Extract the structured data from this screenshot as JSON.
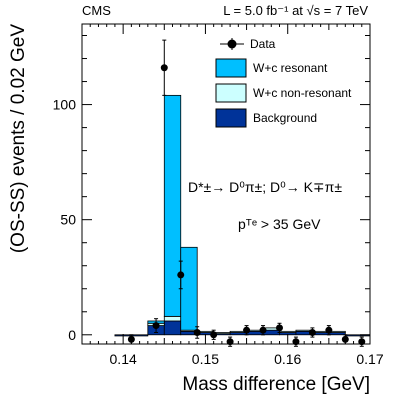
{
  "chart_data": {
    "type": "bar",
    "experiment_label": "CMS",
    "luminosity_label": "L = 5.0 fb⁻¹ at √s = 7 TeV",
    "xlabel": "Mass difference [GeV]",
    "ylabel": "(OS-SS) events / 0.02 GeV",
    "xlim": [
      0.135,
      0.17
    ],
    "ylim": [
      -4,
      135
    ],
    "x_ticks": [
      0.14,
      0.15,
      0.16,
      0.17
    ],
    "y_ticks": [
      0,
      50,
      100
    ],
    "annotations": {
      "decay": "D*±→ D⁰π±; D⁰→ K∓π±",
      "cut": "pᵀᵉ > 35 GeV"
    },
    "legend": {
      "placement": "top-right",
      "entries": [
        "Data",
        "W+c resonant",
        "W+c non-resonant",
        "Background"
      ]
    },
    "colors": {
      "wc_resonant": "#00bfff",
      "wc_nonresonant": "#ccffff",
      "background": "#003399",
      "data": "#000000"
    },
    "bin_edges": [
      0.135,
      0.139,
      0.143,
      0.145,
      0.147,
      0.149,
      0.151,
      0.153,
      0.155,
      0.157,
      0.159,
      0.161,
      0.163,
      0.165,
      0.167,
      0.17
    ],
    "series": [
      {
        "name": "Background",
        "values": [
          0,
          -0.5,
          4,
          6,
          1.5,
          1,
          0.5,
          1,
          1.5,
          2,
          1,
          1.5,
          1,
          1,
          -0.5
        ]
      },
      {
        "name": "W+c non-resonant",
        "values": [
          0,
          0,
          1,
          2,
          0.5,
          0.5,
          0.5,
          0.5,
          0.5,
          1,
          0.5,
          0.5,
          0.5,
          0.5,
          0
        ]
      },
      {
        "name": "W+c resonant",
        "values": [
          0,
          0,
          1,
          96,
          36,
          0,
          0,
          0,
          0,
          0,
          0,
          0,
          0,
          0,
          0
        ]
      }
    ],
    "data_points": [
      {
        "x": 0.141,
        "y": -2,
        "err": 2
      },
      {
        "x": 0.144,
        "y": 4,
        "err": 3
      },
      {
        "x": 0.145,
        "y": 116,
        "err": 12
      },
      {
        "x": 0.147,
        "y": 26,
        "err": 6
      },
      {
        "x": 0.149,
        "y": 1,
        "err": 2.5
      },
      {
        "x": 0.151,
        "y": 0,
        "err": 2
      },
      {
        "x": 0.153,
        "y": -3,
        "err": 2
      },
      {
        "x": 0.155,
        "y": 2,
        "err": 2
      },
      {
        "x": 0.157,
        "y": 2,
        "err": 2
      },
      {
        "x": 0.159,
        "y": 3,
        "err": 2
      },
      {
        "x": 0.161,
        "y": -3,
        "err": 2
      },
      {
        "x": 0.163,
        "y": 1,
        "err": 2
      },
      {
        "x": 0.165,
        "y": 2,
        "err": 2
      },
      {
        "x": 0.167,
        "y": -2,
        "err": 2
      },
      {
        "x": 0.169,
        "y": -3,
        "err": 2
      }
    ]
  }
}
